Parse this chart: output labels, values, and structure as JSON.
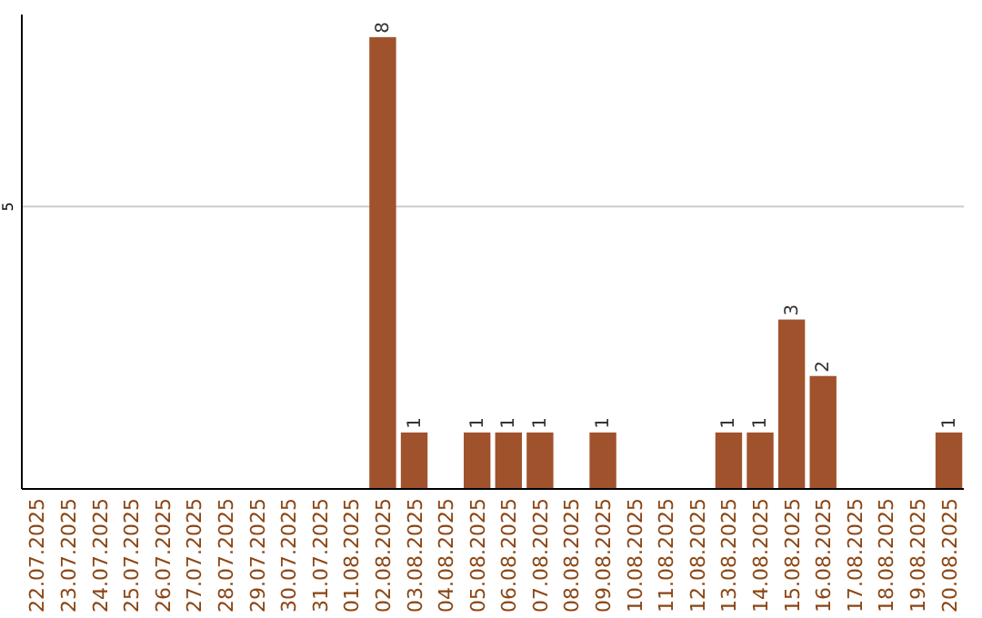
{
  "chart_data": {
    "type": "bar",
    "categories": [
      "22.07.2025",
      "23.07.2025",
      "24.07.2025",
      "25.07.2025",
      "26.07.2025",
      "27.07.2025",
      "28.07.2025",
      "29.07.2025",
      "30.07.2025",
      "31.07.2025",
      "01.08.2025",
      "02.08.2025",
      "03.08.2025",
      "04.08.2025",
      "05.08.2025",
      "06.08.2025",
      "07.08.2025",
      "08.08.2025",
      "09.08.2025",
      "10.08.2025",
      "11.08.2025",
      "12.08.2025",
      "13.08.2025",
      "14.08.2025",
      "15.08.2025",
      "16.08.2025",
      "17.08.2025",
      "18.08.2025",
      "19.08.2025",
      "20.08.2025"
    ],
    "values": [
      0,
      0,
      0,
      0,
      0,
      0,
      0,
      0,
      0,
      0,
      0,
      8,
      1,
      0,
      1,
      1,
      1,
      0,
      1,
      0,
      0,
      0,
      1,
      1,
      3,
      2,
      0,
      0,
      0,
      1
    ],
    "value_labels": [
      null,
      null,
      null,
      null,
      null,
      null,
      null,
      null,
      null,
      null,
      null,
      "8",
      "1",
      null,
      "1",
      "1",
      "1",
      null,
      "1",
      null,
      null,
      null,
      "1",
      "1",
      "3",
      "2",
      null,
      null,
      null,
      "1"
    ],
    "color": "#a0522d",
    "ylim": [
      0,
      8.4
    ],
    "yticks": [
      5
    ],
    "grid": "y"
  }
}
